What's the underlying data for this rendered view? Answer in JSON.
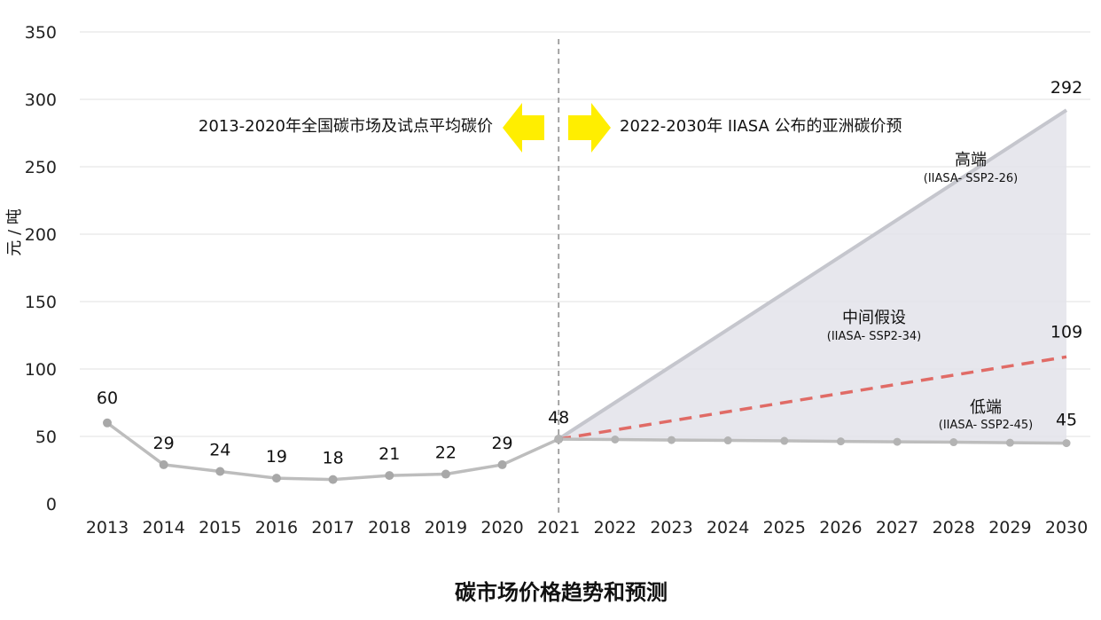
{
  "chart_data": {
    "type": "line",
    "title": "碳市场价格趋势和预测",
    "ylabel": "元 / 吨",
    "xlabel": "",
    "ylim": [
      0,
      350
    ],
    "yticks": [
      0,
      50,
      100,
      150,
      200,
      250,
      300,
      350
    ],
    "grid": true,
    "categories": [
      "2013",
      "2014",
      "2015",
      "2016",
      "2017",
      "2018",
      "2019",
      "2020",
      "2021",
      "2022",
      "2023",
      "2024",
      "2025",
      "2026",
      "2027",
      "2028",
      "2029",
      "2030"
    ],
    "historical": {
      "x": [
        "2013",
        "2014",
        "2015",
        "2016",
        "2017",
        "2018",
        "2019",
        "2020",
        "2021"
      ],
      "values": [
        60,
        29,
        24,
        19,
        18,
        21,
        22,
        29,
        48
      ],
      "labels": [
        "60",
        "29",
        "24",
        "19",
        "18",
        "21",
        "22",
        "29",
        "48"
      ],
      "color": "#bdbdbd"
    },
    "forecast": [
      {
        "name": "高端",
        "sub": "(IIASA- SSP2-26)",
        "x": [
          "2021",
          "2030"
        ],
        "values": [
          48,
          292
        ],
        "end_label": "292",
        "color": "#c5c6cd"
      },
      {
        "name": "中间假设",
        "sub": "(IIASA- SSP2-34)",
        "x": [
          "2021",
          "2030"
        ],
        "values": [
          48,
          109
        ],
        "end_label": "109",
        "color": "#e06b66"
      },
      {
        "name": "低端",
        "sub": "(IIASA- SSP2-45)",
        "x": [
          "2021",
          "2022",
          "2023",
          "2024",
          "2025",
          "2026",
          "2027",
          "2028",
          "2029",
          "2030"
        ],
        "values": [
          48,
          47.7,
          47.3,
          47,
          46.7,
          46.3,
          46,
          45.7,
          45.3,
          45
        ],
        "end_label": "45",
        "color": "#bdbdbd"
      }
    ],
    "divider_at": "2021",
    "annotations": {
      "left_text": "2013-2020年全国碳市场及试点平均碳价",
      "right_text": "2022-2030年 IIASA 公布的亚洲碳价预",
      "arrow_color": "#ffee00",
      "band_fill": "#e3e3ea"
    }
  }
}
